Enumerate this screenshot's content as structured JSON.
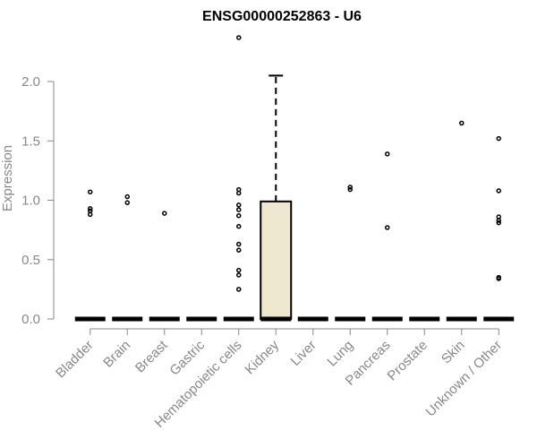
{
  "chart_data": {
    "type": "box",
    "title": "ENSG00000252863 - U6",
    "xlabel": "",
    "ylabel": "Expression",
    "ylim": [
      0,
      2.4
    ],
    "yticks": [
      0.0,
      0.5,
      1.0,
      1.5,
      2.0
    ],
    "ytick_labels": [
      "0.0",
      "0.5",
      "1.0",
      "1.5",
      "2.0"
    ],
    "grid": false,
    "legend": "none",
    "box_color": "#ede8cf",
    "categories": [
      "Bladder",
      "Brain",
      "Breast",
      "Gastric",
      "Hematopoietic cells",
      "Kidney",
      "Liver",
      "Lung",
      "Pancreas",
      "Prostate",
      "Skin",
      "Unknown / Other"
    ],
    "groups": [
      {
        "name": "Bladder",
        "median": 0,
        "q1": 0,
        "q3": 0,
        "whisker_low": 0,
        "whisker_high": 0,
        "outliers": [
          1.07,
          0.93,
          0.91,
          0.88
        ]
      },
      {
        "name": "Brain",
        "median": 0,
        "q1": 0,
        "q3": 0,
        "whisker_low": 0,
        "whisker_high": 0,
        "outliers": [
          1.03,
          0.98
        ]
      },
      {
        "name": "Breast",
        "median": 0,
        "q1": 0,
        "q3": 0,
        "whisker_low": 0,
        "whisker_high": 0,
        "outliers": [
          0.89
        ]
      },
      {
        "name": "Gastric",
        "median": 0,
        "q1": 0,
        "q3": 0,
        "whisker_low": 0,
        "whisker_high": 0,
        "outliers": []
      },
      {
        "name": "Hematopoietic cells",
        "median": 0,
        "q1": 0,
        "q3": 0,
        "whisker_low": 0,
        "whisker_high": 0,
        "outliers": [
          2.37,
          1.09,
          1.06,
          0.96,
          0.92,
          0.87,
          0.78,
          0.63,
          0.58,
          0.41,
          0.37,
          0.25
        ]
      },
      {
        "name": "Kidney",
        "median": 0,
        "q1": 0,
        "q3": 0.99,
        "whisker_low": 0,
        "whisker_high": 2.05,
        "outliers": []
      },
      {
        "name": "Liver",
        "median": 0,
        "q1": 0,
        "q3": 0,
        "whisker_low": 0,
        "whisker_high": 0,
        "outliers": []
      },
      {
        "name": "Lung",
        "median": 0,
        "q1": 0,
        "q3": 0,
        "whisker_low": 0,
        "whisker_high": 0,
        "outliers": [
          1.11,
          1.09
        ]
      },
      {
        "name": "Pancreas",
        "median": 0,
        "q1": 0,
        "q3": 0,
        "whisker_low": 0,
        "whisker_high": 0,
        "outliers": [
          1.39,
          0.77
        ]
      },
      {
        "name": "Prostate",
        "median": 0,
        "q1": 0,
        "q3": 0,
        "whisker_low": 0,
        "whisker_high": 0,
        "outliers": []
      },
      {
        "name": "Skin",
        "median": 0,
        "q1": 0,
        "q3": 0,
        "whisker_low": 0,
        "whisker_high": 0,
        "outliers": [
          1.65
        ]
      },
      {
        "name": "Unknown / Other",
        "median": 0,
        "q1": 0,
        "q3": 0,
        "whisker_low": 0,
        "whisker_high": 0,
        "outliers": [
          1.52,
          1.08,
          0.86,
          0.83,
          0.81,
          0.35,
          0.34
        ]
      }
    ]
  }
}
